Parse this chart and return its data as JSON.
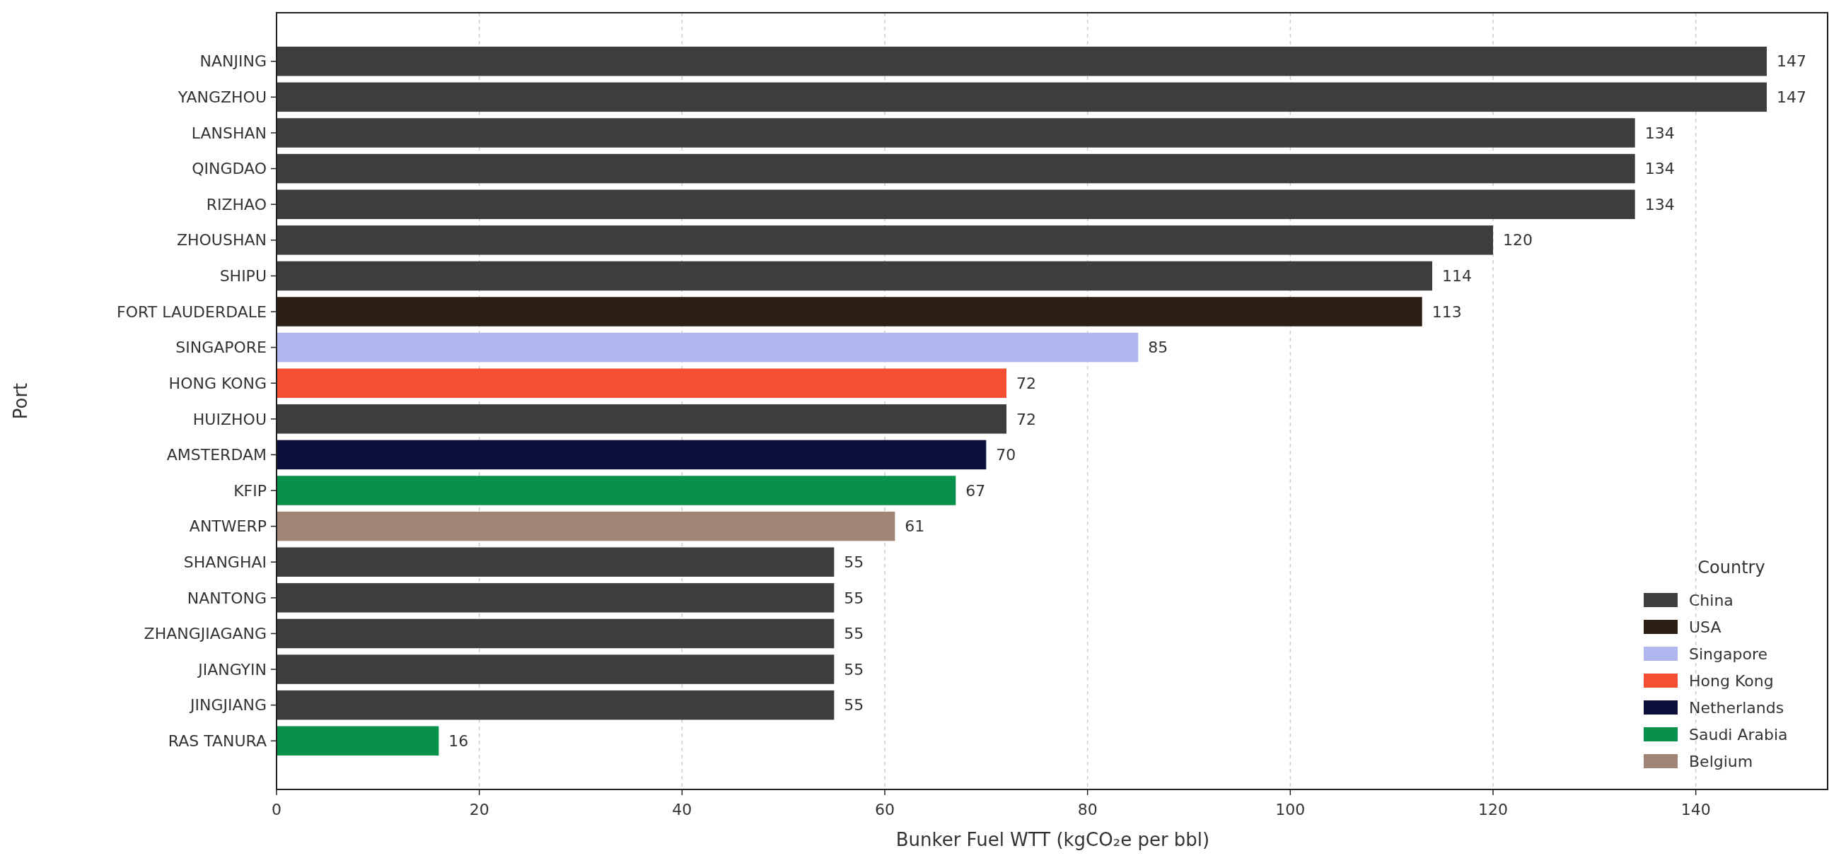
{
  "chart_data": {
    "type": "bar",
    "orientation": "horizontal",
    "xlabel": "Bunker Fuel WTT (kgCO₂e per bbl)",
    "ylabel": "Port",
    "legend_title": "Country",
    "legend": "bottom right",
    "grid": "x",
    "data_labels": true,
    "categories": [
      "NANJING",
      "YANGZHOU",
      "LANSHAN",
      "QINGDAO",
      "RIZHAO",
      "ZHOUSHAN",
      "SHIPU",
      "FORT LAUDERDALE",
      "SINGAPORE",
      "HONG KONG",
      "HUIZHOU",
      "AMSTERDAM",
      "KFIP",
      "ANTWERP",
      "SHANGHAI",
      "NANTONG",
      "ZHANGJIAGANG",
      "JIANGYIN",
      "JINGJIANG",
      "RAS TANURA"
    ],
    "xlim": [
      0,
      153
    ],
    "xticks": [
      0,
      20,
      40,
      60,
      80,
      100,
      120,
      140
    ],
    "series": [
      {
        "name": "China",
        "color": "#3d3d3d",
        "values": [
          147,
          147,
          134,
          134,
          134,
          120,
          114,
          null,
          null,
          null,
          72,
          null,
          null,
          null,
          55,
          55,
          55,
          55,
          55,
          null
        ]
      },
      {
        "name": "USA",
        "color": "#2e1f14",
        "values": [
          null,
          null,
          null,
          null,
          null,
          null,
          null,
          113,
          null,
          null,
          null,
          null,
          null,
          null,
          null,
          null,
          null,
          null,
          null,
          null
        ]
      },
      {
        "name": "Singapore",
        "color": "#b0b7ee",
        "values": [
          null,
          null,
          null,
          null,
          null,
          null,
          null,
          null,
          85,
          null,
          null,
          null,
          null,
          null,
          null,
          null,
          null,
          null,
          null,
          null
        ]
      },
      {
        "name": "Hong Kong",
        "color": "#f44f33",
        "values": [
          null,
          null,
          null,
          null,
          null,
          null,
          null,
          null,
          null,
          72,
          null,
          null,
          null,
          null,
          null,
          null,
          null,
          null,
          null,
          null
        ]
      },
      {
        "name": "Netherlands",
        "color": "#0c0f3a",
        "values": [
          null,
          null,
          null,
          null,
          null,
          null,
          null,
          null,
          null,
          null,
          null,
          70,
          null,
          null,
          null,
          null,
          null,
          null,
          null,
          null
        ]
      },
      {
        "name": "Saudi Arabia",
        "color": "#08914a",
        "values": [
          null,
          null,
          null,
          null,
          null,
          null,
          null,
          null,
          null,
          null,
          null,
          null,
          67,
          null,
          null,
          null,
          null,
          null,
          null,
          16
        ]
      },
      {
        "name": "Belgium",
        "color": "#a08476",
        "values": [
          null,
          null,
          null,
          null,
          null,
          null,
          null,
          null,
          null,
          null,
          null,
          null,
          null,
          61,
          null,
          null,
          null,
          null,
          null,
          null
        ]
      }
    ]
  }
}
